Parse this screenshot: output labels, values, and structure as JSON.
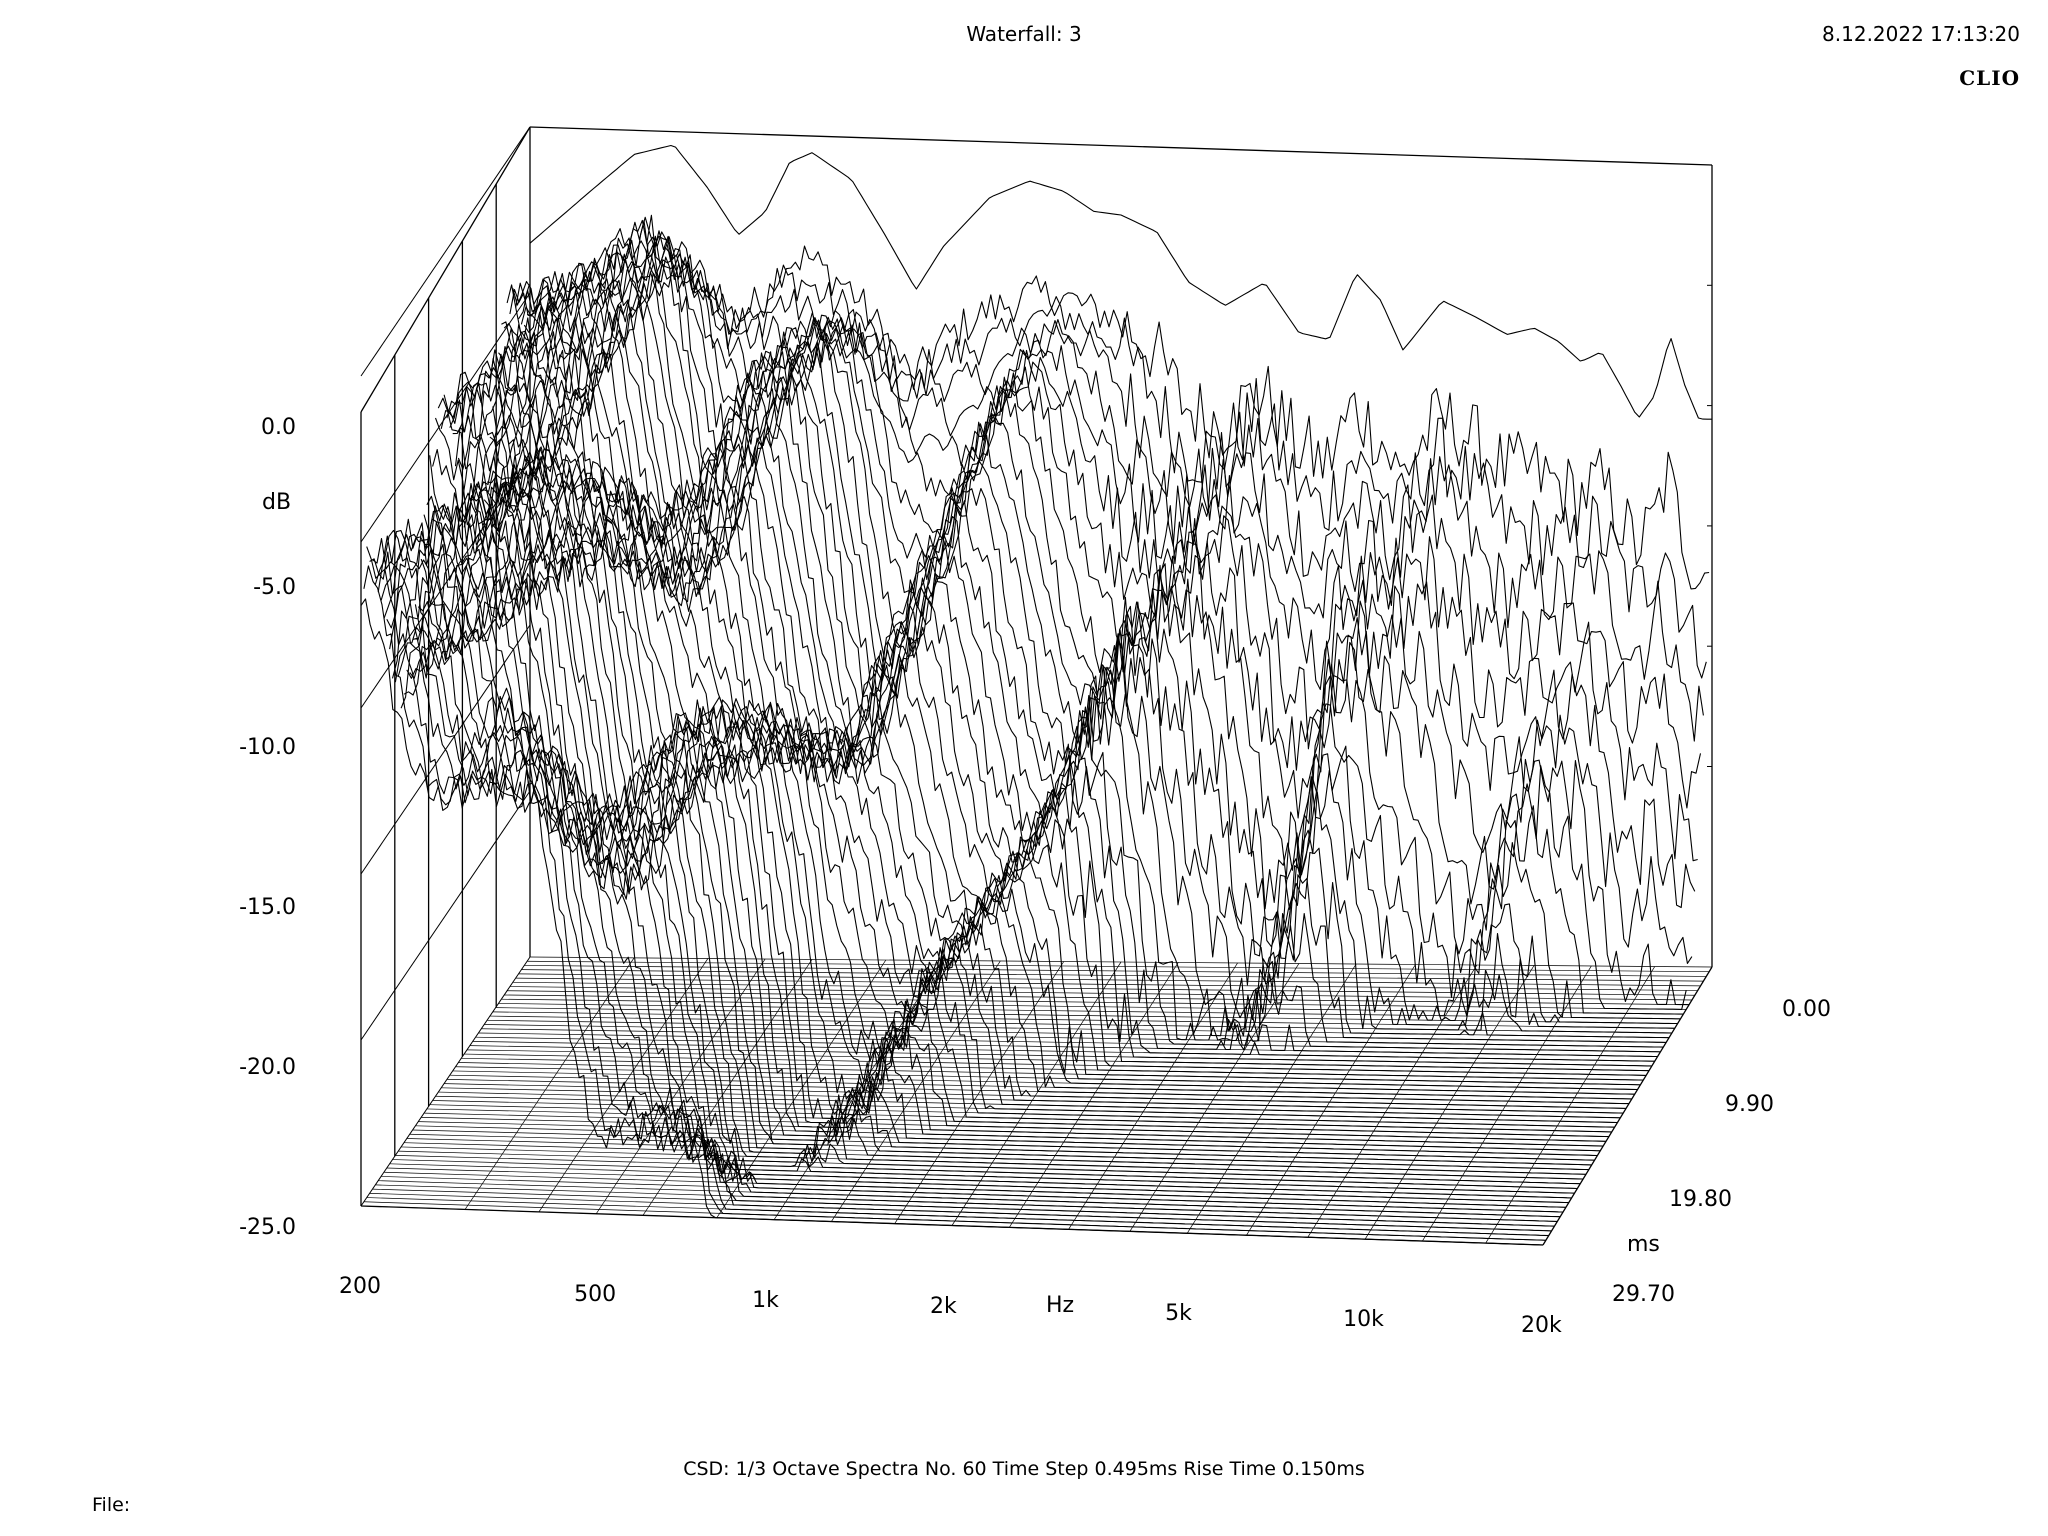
{
  "header": {
    "title": "Waterfall: 3",
    "datetime": "8.12.2022 17:13:20",
    "brand": "CLIO"
  },
  "footer": {
    "info": "CSD:   1/3 Octave   Spectra No. 60   Time Step 0.495ms   Rise Time 0.150ms",
    "file_label": "File:"
  },
  "colors": {
    "line": "#000000",
    "background": "#ffffff"
  },
  "chart_data": {
    "type": "waterfall",
    "title": "Waterfall: 3",
    "xlabel": "Hz",
    "ylabel": "dB",
    "zlabel": "ms",
    "x_scale": "log",
    "xlim": [
      200,
      20000
    ],
    "ylim": [
      -25,
      0
    ],
    "zlim": [
      0,
      29.7
    ],
    "x_ticks": [
      {
        "value": 200,
        "label": "200"
      },
      {
        "value": 500,
        "label": "500"
      },
      {
        "value": 1000,
        "label": "1k"
      },
      {
        "value": 2000,
        "label": "2k"
      },
      {
        "value": 5000,
        "label": "5k"
      },
      {
        "value": 10000,
        "label": "10k"
      },
      {
        "value": 20000,
        "label": "20k"
      }
    ],
    "y_ticks": [
      {
        "value": 0,
        "label": "0.0"
      },
      {
        "value": -5,
        "label": "-5.0"
      },
      {
        "value": -10,
        "label": "-10.0"
      },
      {
        "value": -15,
        "label": "-15.0"
      },
      {
        "value": -20,
        "label": "-20.0"
      },
      {
        "value": -25,
        "label": "-25.0"
      }
    ],
    "z_ticks": [
      {
        "value": 0,
        "label": "0.00"
      },
      {
        "value": 9.9,
        "label": "9.90"
      },
      {
        "value": 19.8,
        "label": "19.80"
      },
      {
        "value": 29.7,
        "label": "29.70"
      }
    ],
    "spectra_count": 60,
    "time_step_ms": 0.495,
    "rise_time_ms": 0.15,
    "smoothing": "1/3 Octave",
    "first_spectrum": {
      "hz": [
        200,
        250,
        300,
        350,
        400,
        450,
        500,
        550,
        600,
        700,
        800,
        900,
        1000,
        1200,
        1400,
        1600,
        1800,
        2000,
        2300,
        2600,
        3000,
        3500,
        4000,
        4500,
        5000,
        5500,
        6000,
        7000,
        8000,
        9000,
        10000,
        11000,
        12000,
        13000,
        14000,
        15000,
        16000,
        17000,
        18000,
        19000,
        20000
      ],
      "db": [
        -3.5,
        -2.0,
        -0.8,
        -0.5,
        -1.8,
        -3.2,
        -2.5,
        -1.0,
        -0.7,
        -1.5,
        -3.2,
        -4.8,
        -3.5,
        -2.0,
        -1.5,
        -1.8,
        -2.4,
        -2.5,
        -3.0,
        -4.5,
        -5.2,
        -4.5,
        -6.0,
        -6.2,
        -4.2,
        -5.0,
        -6.5,
        -5.0,
        -5.5,
        -6.0,
        -5.8,
        -6.2,
        -6.8,
        -6.5,
        -7.5,
        -8.5,
        -7.8,
        -6.0,
        -7.5,
        -8.5,
        -8.5
      ]
    }
  }
}
